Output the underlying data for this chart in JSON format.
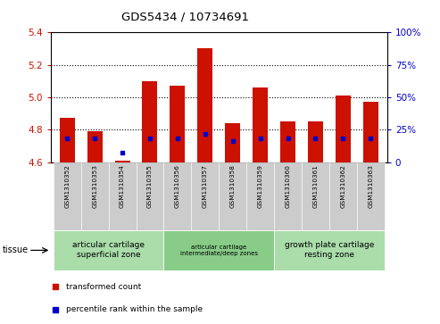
{
  "title": "GDS5434 / 10734691",
  "samples": [
    "GSM1310352",
    "GSM1310353",
    "GSM1310354",
    "GSM1310355",
    "GSM1310356",
    "GSM1310357",
    "GSM1310358",
    "GSM1310359",
    "GSM1310360",
    "GSM1310361",
    "GSM1310362",
    "GSM1310363"
  ],
  "transformed_count": [
    4.87,
    4.79,
    4.61,
    5.1,
    5.07,
    5.3,
    4.84,
    5.06,
    4.85,
    4.85,
    5.01,
    4.97
  ],
  "percentile_rank": [
    18,
    18,
    7,
    18,
    18,
    22,
    16,
    18,
    18,
    18,
    18,
    18
  ],
  "ylim_left": [
    4.6,
    5.4
  ],
  "ylim_right": [
    0,
    100
  ],
  "yticks_left": [
    4.6,
    4.8,
    5.0,
    5.2,
    5.4
  ],
  "yticks_right": [
    0,
    25,
    50,
    75,
    100
  ],
  "bar_color": "#cc1100",
  "percentile_color": "#0000cc",
  "left_tick_color": "#cc1100",
  "right_tick_color": "#0000cc",
  "group_colors": [
    "#aaddaa",
    "#88cc88",
    "#aaddaa"
  ],
  "group_texts": [
    "articular cartilage\nsuperficial zone",
    "articular cartilage\nintermediate/deep zones",
    "growth plate cartilage\nresting zone"
  ],
  "group_ranges": [
    [
      0,
      4
    ],
    [
      4,
      8
    ],
    [
      8,
      12
    ]
  ],
  "legend_labels": [
    "transformed count",
    "percentile rank within the sample"
  ],
  "legend_colors": [
    "#cc1100",
    "#0000cc"
  ],
  "bar_width": 0.55,
  "baseline": 4.6
}
